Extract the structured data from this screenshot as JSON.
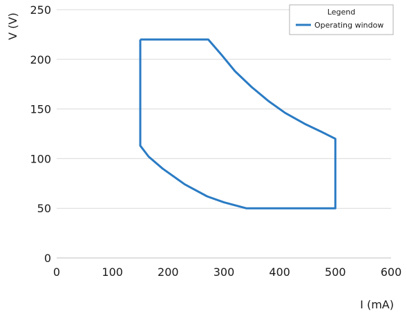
{
  "chart_data": {
    "type": "line",
    "xlabel": "I (mA)",
    "ylabel": "V (V)",
    "xlim": [
      0,
      600
    ],
    "ylim": [
      0,
      250
    ],
    "xticks": [
      "0",
      "100",
      "200",
      "300",
      "400",
      "500",
      "600"
    ],
    "yticks": [
      "0",
      "50",
      "100",
      "150",
      "200",
      "250"
    ],
    "grid": "horizontal",
    "legend": {
      "title": "Legend",
      "placement": "top-right"
    },
    "colors": {
      "series": "#2a7bc4",
      "grid": "#d9d9d9",
      "axis": "#bfbfbf"
    },
    "series": [
      {
        "name": "Operating window",
        "x": [
          150,
          272,
          295,
          320,
          350,
          380,
          410,
          445,
          475,
          500,
          500,
          340,
          300,
          270,
          230,
          190,
          165,
          150,
          150
        ],
        "y": [
          220,
          220,
          205,
          188,
          172,
          158,
          146,
          135,
          127,
          120,
          50,
          50,
          56,
          62,
          74,
          90,
          102,
          113,
          220
        ]
      }
    ]
  }
}
